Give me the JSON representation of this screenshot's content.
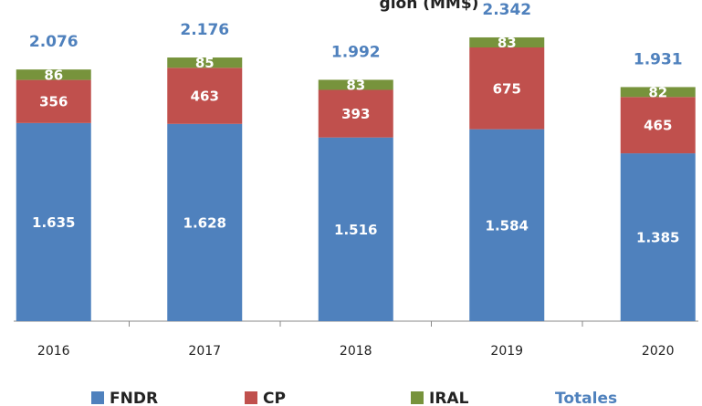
{
  "chart_data": {
    "type": "stacked_bar",
    "title": "gión (MM$)",
    "categories": [
      "2016",
      "2017",
      "2018",
      "2019",
      "2020"
    ],
    "series": [
      {
        "name": "FNDR",
        "color": "#4f81bd",
        "values": [
          1635,
          1628,
          1516,
          1584,
          1385
        ],
        "value_labels": [
          "1.635",
          "1.628",
          "1.516",
          "1.584",
          "1.385"
        ]
      },
      {
        "name": "CP",
        "color": "#c0504d",
        "values": [
          356,
          463,
          393,
          675,
          465
        ]
      },
      {
        "name": "IRAL",
        "color": "#77933c",
        "values": [
          86,
          85,
          83,
          83,
          82
        ]
      }
    ],
    "totals": {
      "name": "Totales",
      "color": "#4f81bd",
      "values": [
        2076,
        2176,
        1992,
        2342,
        1931
      ],
      "value_labels": [
        "2.076",
        "2.176",
        "1.992",
        "2.342",
        "1.931"
      ]
    },
    "ylim": [
      0,
      2500
    ]
  }
}
